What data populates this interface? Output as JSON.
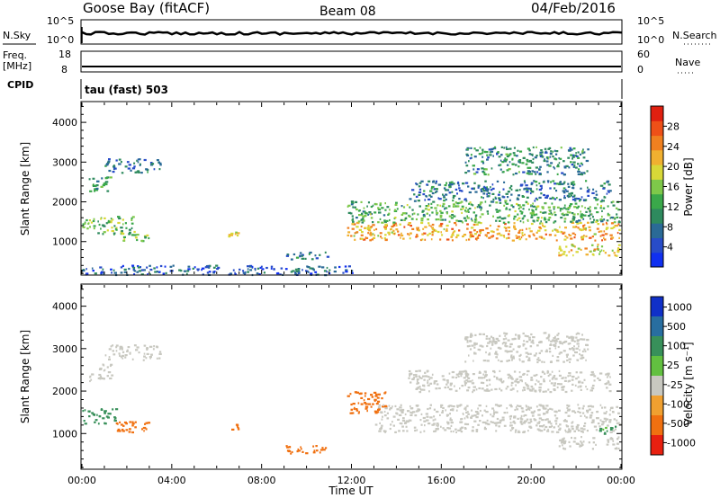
{
  "header": {
    "station": "Goose Bay (fitACF)",
    "beam": "Beam 08",
    "date": "04/Feb/2016"
  },
  "noise_panel": {
    "left_label": "N.Sky",
    "right_label": "N.Search",
    "ticks": [
      "10^5",
      "10^0"
    ]
  },
  "freq_panel": {
    "left_label": "Freq.",
    "left_unit": "[MHz]",
    "left_ticks": [
      "18",
      "8"
    ],
    "right_label": "Nave",
    "right_ticks": [
      "60",
      "0"
    ]
  },
  "cpid_panel": {
    "label": "CPID",
    "text": "tau (fast) 503"
  },
  "chart_data": [
    {
      "type": "heatmap",
      "name": "power",
      "ylabel": "Slant Range [km]",
      "ylim": [
        180,
        4500
      ],
      "yticks": [
        1000,
        2000,
        3000,
        4000
      ],
      "xlim": [
        0,
        24
      ],
      "colorbar": {
        "label": "Power [dB]",
        "ticks": [
          "4",
          "8",
          "12",
          "16",
          "20",
          "24",
          "28"
        ],
        "colors": [
          "#1030f0",
          "#284cc8",
          "#2a6a96",
          "#2e8a5e",
          "#3aa84a",
          "#7ec84a",
          "#d8d838",
          "#f0b030",
          "#f08020",
          "#ee5018",
          "#e02010"
        ]
      },
      "regions": [
        {
          "x": [
            0.3,
            1.3
          ],
          "y": [
            2250,
            2650
          ],
          "value": 12
        },
        {
          "x": [
            1.0,
            3.5
          ],
          "y": [
            2750,
            3100
          ],
          "value": 8
        },
        {
          "x": [
            0.0,
            2.4
          ],
          "y": [
            1200,
            1650
          ],
          "value": 14
        },
        {
          "x": [
            1.8,
            3.0
          ],
          "y": [
            1000,
            1200
          ],
          "value": 16
        },
        {
          "x": [
            6.5,
            7.0
          ],
          "y": [
            1050,
            1300
          ],
          "value": 18
        },
        {
          "x": [
            9.0,
            10.9
          ],
          "y": [
            550,
            750
          ],
          "value": 8
        },
        {
          "x": [
            11.8,
            23.9
          ],
          "y": [
            1050,
            1500
          ],
          "value": 22
        },
        {
          "x": [
            11.8,
            23.9
          ],
          "y": [
            1500,
            2050
          ],
          "value": 13
        },
        {
          "x": [
            14.5,
            23.5
          ],
          "y": [
            2050,
            2550
          ],
          "value": 8
        },
        {
          "x": [
            17.0,
            22.5
          ],
          "y": [
            2700,
            3400
          ],
          "value": 10
        },
        {
          "x": [
            21.2,
            23.9
          ],
          "y": [
            650,
            950
          ],
          "value": 20
        },
        {
          "x": [
            0.0,
            12.0
          ],
          "y": [
            180,
            420
          ],
          "value": 6
        }
      ]
    },
    {
      "type": "heatmap",
      "name": "velocity",
      "xlabel": "Time UT",
      "xticks": [
        "00:00",
        "04:00",
        "08:00",
        "12:00",
        "16:00",
        "20:00",
        "00:00"
      ],
      "ylabel": "Slant Range [km]",
      "ylim": [
        180,
        4500
      ],
      "yticks": [
        1000,
        2000,
        3000,
        4000
      ],
      "xlim": [
        0,
        24
      ],
      "colorbar": {
        "label": "Velocity [m s⁻¹]",
        "ticks": [
          "1000",
          "500",
          "100",
          "25",
          "-25",
          "-100",
          "-500",
          "-1000"
        ],
        "colors": [
          "#1030c8",
          "#286ea0",
          "#38905a",
          "#62c040",
          "#c8c8c0",
          "#f0a030",
          "#f07010",
          "#e82010"
        ]
      },
      "regions": [
        {
          "x": [
            0.3,
            1.3
          ],
          "y": [
            2250,
            2650
          ],
          "value": 0
        },
        {
          "x": [
            1.0,
            3.5
          ],
          "y": [
            2750,
            3100
          ],
          "value": 0
        },
        {
          "x": [
            0.0,
            1.5
          ],
          "y": [
            1250,
            1600
          ],
          "value": 300
        },
        {
          "x": [
            1.5,
            3.0
          ],
          "y": [
            1000,
            1300
          ],
          "value": -300
        },
        {
          "x": [
            6.5,
            7.0
          ],
          "y": [
            1100,
            1250
          ],
          "value": -300
        },
        {
          "x": [
            9.0,
            10.9
          ],
          "y": [
            550,
            750
          ],
          "value": -300
        },
        {
          "x": [
            11.8,
            13.5
          ],
          "y": [
            1500,
            2000
          ],
          "value": -300
        },
        {
          "x": [
            13.0,
            23.9
          ],
          "y": [
            1050,
            1700
          ],
          "value": 0
        },
        {
          "x": [
            14.5,
            23.5
          ],
          "y": [
            2000,
            2500
          ],
          "value": 0
        },
        {
          "x": [
            17.0,
            22.5
          ],
          "y": [
            2700,
            3400
          ],
          "value": 0
        },
        {
          "x": [
            21.2,
            23.9
          ],
          "y": [
            650,
            950
          ],
          "value": 0
        },
        {
          "x": [
            23.0,
            23.9
          ],
          "y": [
            1000,
            1200
          ],
          "value": 200
        }
      ]
    }
  ]
}
